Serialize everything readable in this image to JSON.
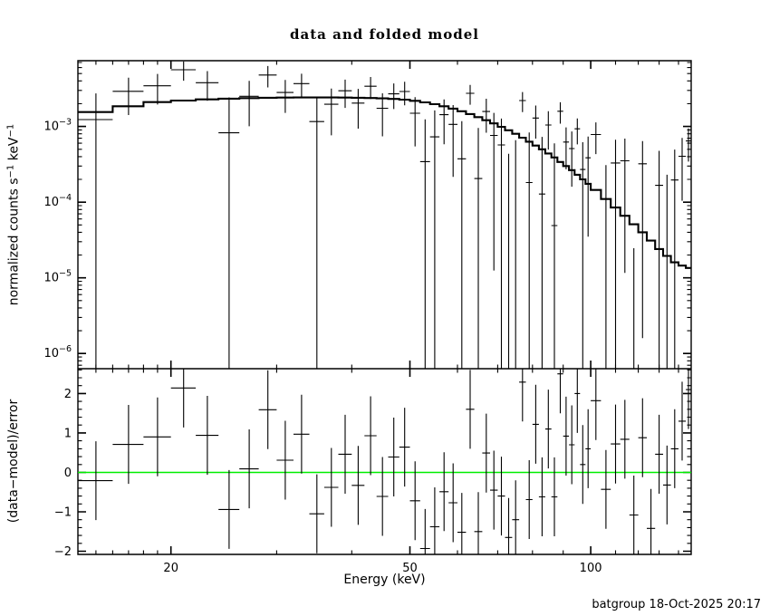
{
  "page": {
    "footer": "batgroup 18-Oct-2025 20:17",
    "background": "#ffffff",
    "foreground": "#000000"
  },
  "chart_data": [
    {
      "type": "scatter",
      "panel": "top",
      "title": "data and folded model",
      "xlabel": "Energy (keV)",
      "ylabel": "normalized counts s^-1 keV^-1",
      "ylabel_parts": [
        {
          "t": "normalized counts s"
        },
        {
          "sup": "−1"
        },
        {
          "t": " keV"
        },
        {
          "sup": "−1"
        }
      ],
      "xscale": "log",
      "yscale": "log",
      "xlim": [
        14,
        147
      ],
      "ylim": [
        6.3e-07,
        0.0074
      ],
      "grid": false,
      "xticks_major": [
        {
          "v": 20,
          "label": "20"
        },
        {
          "v": 50,
          "label": "50"
        },
        {
          "v": 100,
          "label": "100"
        }
      ],
      "xticks_minor": [
        15,
        16,
        17,
        18,
        19,
        30,
        40,
        60,
        70,
        80,
        90,
        110,
        120,
        130,
        140
      ],
      "yticks_major": [
        {
          "v": 0.001,
          "base": "10",
          "exp": "−3"
        },
        {
          "v": 0.0001,
          "base": "10",
          "exp": "−4"
        },
        {
          "v": 1e-05,
          "base": "10",
          "exp": "−5"
        },
        {
          "v": 1e-06,
          "base": "10",
          "exp": "−6"
        }
      ],
      "series": [
        {
          "name": "data",
          "marker": "cross-with-error-bars",
          "color": "#000000"
        },
        {
          "name": "folded model",
          "style": "step-histogram",
          "color": "#000000"
        }
      ],
      "bins_format": [
        "e_lo_keV",
        "e_hi_keV",
        "model_value",
        "sigma",
        "residual_(data-model)/sigma"
      ],
      "bins": [
        [
          14,
          16,
          0.00155,
          0.0015,
          -0.21
        ],
        [
          16,
          18,
          0.00185,
          0.0015,
          0.71
        ],
        [
          18,
          20,
          0.0021,
          0.0015,
          0.9
        ],
        [
          20,
          22,
          0.0022,
          0.0016,
          2.14
        ],
        [
          22,
          24,
          0.00228,
          0.0016,
          0.94
        ],
        [
          24,
          26,
          0.00233,
          0.0016,
          -0.94
        ],
        [
          26,
          28,
          0.00237,
          0.0015,
          0.09
        ],
        [
          28,
          30,
          0.0024,
          0.0015,
          1.59
        ],
        [
          30,
          32,
          0.00241,
          0.0013,
          0.31
        ],
        [
          32,
          34,
          0.00242,
          0.0013,
          0.97
        ],
        [
          34,
          36,
          0.00242,
          0.0012,
          -1.05
        ],
        [
          36,
          38,
          0.00242,
          0.0012,
          -0.38
        ],
        [
          38,
          40,
          0.00241,
          0.0012,
          0.46
        ],
        [
          40,
          42,
          0.0024,
          0.0011,
          -0.33
        ],
        [
          42,
          44,
          0.00238,
          0.0011,
          0.93
        ],
        [
          44,
          46,
          0.00235,
          0.001,
          -0.61
        ],
        [
          46,
          48,
          0.00231,
          0.001,
          0.39
        ],
        [
          48,
          50,
          0.00226,
          0.001,
          0.64
        ],
        [
          50,
          52,
          0.00218,
          0.00095,
          -0.72
        ],
        [
          52,
          54,
          0.00208,
          0.0009,
          -1.93
        ],
        [
          54,
          56,
          0.00197,
          0.0009,
          -1.38
        ],
        [
          56,
          58,
          0.00185,
          0.00085,
          -0.49
        ],
        [
          58,
          60,
          0.00172,
          0.00085,
          -0.77
        ],
        [
          60,
          62,
          0.00159,
          0.0008,
          -1.52
        ],
        [
          62,
          64,
          0.00146,
          0.0008,
          1.6
        ],
        [
          64,
          66,
          0.00133,
          0.00075,
          -1.5
        ],
        [
          66,
          68,
          0.00121,
          0.00075,
          0.49
        ],
        [
          68,
          70,
          0.0011,
          0.00075,
          -0.45
        ],
        [
          70,
          72,
          0.00099,
          0.0007,
          -0.6
        ],
        [
          72,
          74,
          0.00089,
          0.0007,
          -1.65
        ],
        [
          74,
          76,
          0.0008,
          0.0007,
          -1.2
        ],
        [
          76,
          78,
          0.00071,
          0.00065,
          2.29
        ],
        [
          78,
          80,
          0.00063,
          0.00065,
          -0.69
        ],
        [
          80,
          82,
          0.00056,
          0.0006,
          1.22
        ],
        [
          82,
          84,
          0.0005,
          0.0006,
          -0.62
        ],
        [
          84,
          86,
          0.00044,
          0.00055,
          1.1
        ],
        [
          86,
          88,
          0.00039,
          0.00055,
          -0.62
        ],
        [
          88,
          90,
          0.00034,
          0.0005,
          2.5
        ],
        [
          90,
          92,
          0.0003,
          0.00035,
          0.92
        ],
        [
          92,
          94,
          0.000265,
          0.00035,
          0.7
        ],
        [
          94,
          96,
          0.00023,
          0.00035,
          2.0
        ],
        [
          96,
          98,
          0.0002,
          0.00035,
          0.2
        ],
        [
          98,
          100,
          0.000175,
          0.00035,
          0.6
        ],
        [
          100,
          104,
          0.000145,
          0.00035,
          1.82
        ],
        [
          104,
          108,
          0.00011,
          0.00035,
          -0.43
        ],
        [
          108,
          112,
          8.5e-05,
          0.00034,
          0.72
        ],
        [
          112,
          116,
          6.6e-05,
          0.00034,
          0.84
        ],
        [
          116,
          120,
          5.1e-05,
          0.00033,
          -1.08
        ],
        [
          120,
          124,
          4e-05,
          0.00032,
          0.88
        ],
        [
          124,
          128,
          3.1e-05,
          0.00032,
          -1.42
        ],
        [
          128,
          132,
          2.4e-05,
          0.00031,
          0.46
        ],
        [
          132,
          136,
          1.95e-05,
          0.00031,
          -0.32
        ],
        [
          136,
          140,
          1.6e-05,
          0.0003,
          0.6
        ],
        [
          140,
          144,
          1.45e-05,
          0.0003,
          1.3
        ],
        [
          144,
          147,
          1.35e-05,
          0.0003,
          2.1
        ]
      ]
    },
    {
      "type": "scatter",
      "panel": "bottom",
      "ylabel": "(data−model)/error",
      "yscale": "linear",
      "ylim": [
        -2.08,
        2.63
      ],
      "yticks_major": [
        {
          "v": -2,
          "label": "−2"
        },
        {
          "v": -1,
          "label": "−1"
        },
        {
          "v": 0,
          "label": "0"
        },
        {
          "v": 1,
          "label": "1"
        },
        {
          "v": 2,
          "label": "2"
        }
      ],
      "ytick_minor_step": 0.2,
      "zero_line_color": "#00ee00",
      "error_bar_halfwidth": 1,
      "note": "residual points share the bins of the top panel"
    }
  ]
}
